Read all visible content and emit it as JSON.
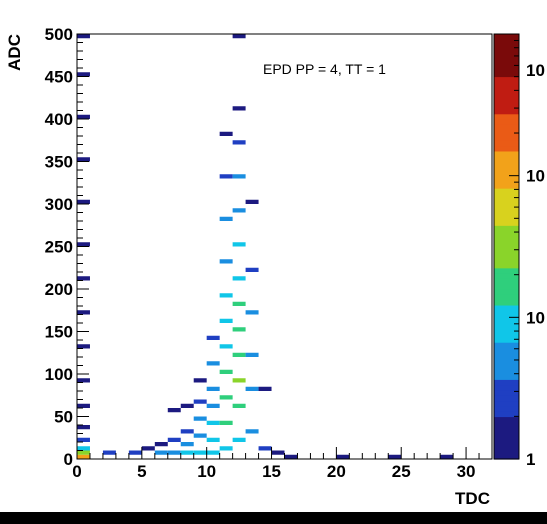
{
  "chart_data": {
    "type": "heatmap",
    "title": "",
    "annotation": "EPD PP = 4, TT = 1",
    "xlabel": "TDC",
    "ylabel": "ADC",
    "xlim": [
      0,
      32
    ],
    "ylim": [
      0,
      500
    ],
    "x_ticks": [
      "0",
      "5",
      "10",
      "15",
      "20",
      "25",
      "30"
    ],
    "y_ticks": [
      "0",
      "50",
      "100",
      "150",
      "200",
      "250",
      "300",
      "350",
      "400",
      "450",
      "500"
    ],
    "colorbar": {
      "scale": "log",
      "range": [
        1,
        1000
      ],
      "tick_labels": [
        "1",
        "10",
        "10",
        "10"
      ],
      "colors": [
        "#1c1a80",
        "#1f3fc2",
        "#1a8ee0",
        "#10c6e8",
        "#2fcf7c",
        "#8ad42a",
        "#d8d21e",
        "#f2a21a",
        "#ea5b16",
        "#c01c12",
        "#7a0a0a"
      ]
    },
    "grid": false,
    "legend": "none",
    "cells": [
      {
        "x": 0,
        "y": 0,
        "count": 150
      },
      {
        "x": 0,
        "y": 5,
        "count": 40
      },
      {
        "x": 0,
        "y": 10,
        "count": 8
      },
      {
        "x": 0,
        "y": 20,
        "count": 2
      },
      {
        "x": 0,
        "y": 35,
        "count": 1
      },
      {
        "x": 0,
        "y": 60,
        "count": 1
      },
      {
        "x": 0,
        "y": 90,
        "count": 1
      },
      {
        "x": 0,
        "y": 130,
        "count": 1
      },
      {
        "x": 0,
        "y": 170,
        "count": 1
      },
      {
        "x": 0,
        "y": 210,
        "count": 1
      },
      {
        "x": 0,
        "y": 250,
        "count": 1
      },
      {
        "x": 0,
        "y": 300,
        "count": 1
      },
      {
        "x": 0,
        "y": 350,
        "count": 1
      },
      {
        "x": 0,
        "y": 400,
        "count": 1
      },
      {
        "x": 0,
        "y": 450,
        "count": 1
      },
      {
        "x": 0,
        "y": 495,
        "count": 1
      },
      {
        "x": 2,
        "y": 5,
        "count": 2
      },
      {
        "x": 4,
        "y": 5,
        "count": 2
      },
      {
        "x": 5,
        "y": 10,
        "count": 1
      },
      {
        "x": 6,
        "y": 5,
        "count": 3
      },
      {
        "x": 6,
        "y": 15,
        "count": 1
      },
      {
        "x": 7,
        "y": 5,
        "count": 4
      },
      {
        "x": 7,
        "y": 20,
        "count": 2
      },
      {
        "x": 7,
        "y": 55,
        "count": 1
      },
      {
        "x": 8,
        "y": 5,
        "count": 6
      },
      {
        "x": 8,
        "y": 15,
        "count": 3
      },
      {
        "x": 8,
        "y": 30,
        "count": 2
      },
      {
        "x": 8,
        "y": 60,
        "count": 1
      },
      {
        "x": 9,
        "y": 5,
        "count": 8
      },
      {
        "x": 9,
        "y": 25,
        "count": 5
      },
      {
        "x": 9,
        "y": 45,
        "count": 3
      },
      {
        "x": 9,
        "y": 65,
        "count": 2
      },
      {
        "x": 9,
        "y": 90,
        "count": 1
      },
      {
        "x": 10,
        "y": 5,
        "count": 10
      },
      {
        "x": 10,
        "y": 20,
        "count": 8
      },
      {
        "x": 10,
        "y": 40,
        "count": 6
      },
      {
        "x": 10,
        "y": 60,
        "count": 5
      },
      {
        "x": 10,
        "y": 80,
        "count": 4
      },
      {
        "x": 10,
        "y": 110,
        "count": 3
      },
      {
        "x": 10,
        "y": 140,
        "count": 2
      },
      {
        "x": 11,
        "y": 10,
        "count": 9
      },
      {
        "x": 11,
        "y": 40,
        "count": 12
      },
      {
        "x": 11,
        "y": 70,
        "count": 14
      },
      {
        "x": 11,
        "y": 100,
        "count": 12
      },
      {
        "x": 11,
        "y": 130,
        "count": 10
      },
      {
        "x": 11,
        "y": 160,
        "count": 8
      },
      {
        "x": 11,
        "y": 190,
        "count": 6
      },
      {
        "x": 11,
        "y": 230,
        "count": 4
      },
      {
        "x": 11,
        "y": 280,
        "count": 3
      },
      {
        "x": 11,
        "y": 330,
        "count": 2
      },
      {
        "x": 11,
        "y": 380,
        "count": 1
      },
      {
        "x": 12,
        "y": 20,
        "count": 10
      },
      {
        "x": 12,
        "y": 60,
        "count": 22
      },
      {
        "x": 12,
        "y": 90,
        "count": 25
      },
      {
        "x": 12,
        "y": 120,
        "count": 22
      },
      {
        "x": 12,
        "y": 150,
        "count": 18
      },
      {
        "x": 12,
        "y": 180,
        "count": 14
      },
      {
        "x": 12,
        "y": 210,
        "count": 10
      },
      {
        "x": 12,
        "y": 250,
        "count": 7
      },
      {
        "x": 12,
        "y": 290,
        "count": 5
      },
      {
        "x": 12,
        "y": 330,
        "count": 3
      },
      {
        "x": 12,
        "y": 370,
        "count": 2
      },
      {
        "x": 12,
        "y": 410,
        "count": 1
      },
      {
        "x": 12,
        "y": 495,
        "count": 1
      },
      {
        "x": 13,
        "y": 30,
        "count": 4
      },
      {
        "x": 13,
        "y": 80,
        "count": 5
      },
      {
        "x": 13,
        "y": 120,
        "count": 4
      },
      {
        "x": 13,
        "y": 170,
        "count": 3
      },
      {
        "x": 13,
        "y": 220,
        "count": 2
      },
      {
        "x": 13,
        "y": 300,
        "count": 1
      },
      {
        "x": 14,
        "y": 10,
        "count": 2
      },
      {
        "x": 14,
        "y": 80,
        "count": 1
      },
      {
        "x": 15,
        "y": 5,
        "count": 1
      },
      {
        "x": 16,
        "y": 0,
        "count": 1
      },
      {
        "x": 20,
        "y": 0,
        "count": 1
      },
      {
        "x": 24,
        "y": 0,
        "count": 1
      },
      {
        "x": 28,
        "y": 0,
        "count": 1
      }
    ]
  }
}
